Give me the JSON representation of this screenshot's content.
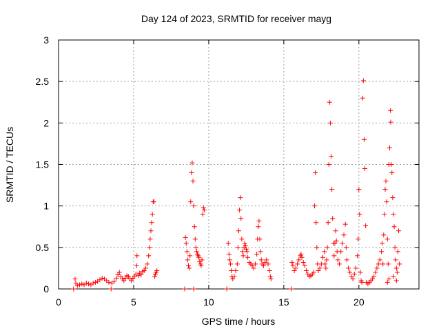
{
  "chart_data": {
    "type": "scatter",
    "title": "Day 124 of 2023, SRMTID for receiver mayg",
    "xlabel": "GPS time / hours",
    "ylabel": "SRMTID / TECUs",
    "xlim": [
      0,
      24
    ],
    "ylim": [
      0,
      3
    ],
    "xticks": [
      0,
      5,
      10,
      15,
      20
    ],
    "xtick_labels": [
      "0",
      "5",
      "10",
      "15",
      "20"
    ],
    "yticks": [
      0,
      0.5,
      1,
      1.5,
      2,
      2.5,
      3
    ],
    "ytick_labels": [
      "0",
      "0.5",
      "1",
      "1.5",
      "2",
      "2.5",
      "3"
    ],
    "grid": true,
    "marker": "+",
    "color": "#ff0000",
    "series": [
      {
        "name": "SRMTID",
        "points": [
          [
            1.0,
            0.0
          ],
          [
            1.1,
            0.12
          ],
          [
            1.15,
            0.07
          ],
          [
            1.25,
            0.04
          ],
          [
            1.4,
            0.05
          ],
          [
            1.55,
            0.06
          ],
          [
            1.7,
            0.05
          ],
          [
            1.85,
            0.07
          ],
          [
            2.0,
            0.06
          ],
          [
            2.15,
            0.05
          ],
          [
            2.3,
            0.07
          ],
          [
            2.45,
            0.08
          ],
          [
            2.6,
            0.09
          ],
          [
            2.75,
            0.11
          ],
          [
            2.9,
            0.13
          ],
          [
            3.05,
            0.12
          ],
          [
            3.2,
            0.1
          ],
          [
            3.35,
            0.08
          ],
          [
            3.5,
            0.0
          ],
          [
            3.55,
            0.07
          ],
          [
            3.7,
            0.09
          ],
          [
            3.85,
            0.13
          ],
          [
            3.95,
            0.17
          ],
          [
            4.05,
            0.2
          ],
          [
            4.15,
            0.15
          ],
          [
            4.25,
            0.12
          ],
          [
            4.35,
            0.1
          ],
          [
            4.45,
            0.13
          ],
          [
            4.55,
            0.16
          ],
          [
            4.65,
            0.15
          ],
          [
            4.75,
            0.12
          ],
          [
            4.85,
            0.1
          ],
          [
            4.95,
            0.13
          ],
          [
            5.05,
            0.15
          ],
          [
            5.15,
            0.18
          ],
          [
            5.2,
            0.28
          ],
          [
            5.22,
            0.4
          ],
          [
            5.3,
            0.16
          ],
          [
            5.4,
            0.19
          ],
          [
            5.5,
            0.17
          ],
          [
            5.6,
            0.21
          ],
          [
            5.7,
            0.22
          ],
          [
            5.8,
            0.25
          ],
          [
            5.9,
            0.3
          ],
          [
            6.0,
            0.4
          ],
          [
            6.05,
            0.5
          ],
          [
            6.1,
            0.6
          ],
          [
            6.15,
            0.7
          ],
          [
            6.2,
            0.8
          ],
          [
            6.25,
            0.9
          ],
          [
            6.3,
            1.05
          ],
          [
            6.35,
            1.05
          ],
          [
            6.4,
            0.15
          ],
          [
            6.45,
            0.18
          ],
          [
            6.5,
            0.2
          ],
          [
            6.55,
            0.22
          ],
          [
            8.4,
            0.0
          ],
          [
            8.45,
            0.62
          ],
          [
            8.5,
            0.55
          ],
          [
            8.55,
            0.45
          ],
          [
            8.6,
            0.35
          ],
          [
            8.65,
            0.28
          ],
          [
            8.7,
            0.25
          ],
          [
            8.75,
            0.4
          ],
          [
            8.8,
            1.05
          ],
          [
            8.85,
            1.4
          ],
          [
            8.9,
            1.52
          ],
          [
            8.95,
            1.3
          ],
          [
            9.0,
            1.0
          ],
          [
            9.05,
            0.75
          ],
          [
            9.1,
            0.6
          ],
          [
            9.15,
            0.5
          ],
          [
            9.2,
            0.45
          ],
          [
            9.25,
            0.42
          ],
          [
            9.3,
            0.4
          ],
          [
            9.35,
            0.38
          ],
          [
            9.4,
            0.33
          ],
          [
            9.45,
            0.3
          ],
          [
            9.5,
            0.28
          ],
          [
            9.55,
            0.35
          ],
          [
            9.6,
            0.9
          ],
          [
            9.65,
            0.98
          ],
          [
            9.7,
            0.95
          ],
          [
            9.0,
            0.0
          ],
          [
            11.2,
            0.0
          ],
          [
            11.3,
            0.55
          ],
          [
            11.35,
            0.42
          ],
          [
            11.4,
            0.35
          ],
          [
            11.45,
            0.3
          ],
          [
            11.5,
            0.22
          ],
          [
            11.55,
            0.15
          ],
          [
            11.6,
            0.12
          ],
          [
            11.7,
            0.15
          ],
          [
            11.8,
            0.22
          ],
          [
            11.9,
            0.3
          ],
          [
            11.95,
            0.5
          ],
          [
            12.0,
            0.7
          ],
          [
            12.05,
            0.95
          ],
          [
            12.1,
            1.1
          ],
          [
            12.15,
            0.85
          ],
          [
            12.2,
            0.6
          ],
          [
            12.25,
            0.45
          ],
          [
            12.3,
            0.4
          ],
          [
            12.35,
            0.5
          ],
          [
            12.4,
            0.55
          ],
          [
            12.45,
            0.52
          ],
          [
            12.5,
            0.48
          ],
          [
            12.55,
            0.45
          ],
          [
            12.6,
            0.38
          ],
          [
            12.7,
            0.32
          ],
          [
            12.8,
            0.3
          ],
          [
            12.9,
            0.28
          ],
          [
            13.0,
            0.25
          ],
          [
            13.1,
            0.3
          ],
          [
            13.2,
            0.42
          ],
          [
            13.25,
            0.6
          ],
          [
            13.3,
            0.75
          ],
          [
            13.35,
            0.82
          ],
          [
            13.4,
            0.6
          ],
          [
            13.45,
            0.45
          ],
          [
            13.5,
            0.35
          ],
          [
            13.55,
            0.3
          ],
          [
            13.65,
            0.28
          ],
          [
            13.75,
            0.32
          ],
          [
            13.85,
            0.35
          ],
          [
            13.95,
            0.3
          ],
          [
            14.05,
            0.22
          ],
          [
            14.1,
            0.15
          ],
          [
            14.15,
            0.12
          ],
          [
            15.5,
            0.0
          ],
          [
            15.55,
            0.32
          ],
          [
            15.6,
            0.28
          ],
          [
            15.7,
            0.22
          ],
          [
            15.8,
            0.25
          ],
          [
            15.9,
            0.3
          ],
          [
            16.0,
            0.35
          ],
          [
            16.1,
            0.4
          ],
          [
            16.15,
            0.42
          ],
          [
            16.2,
            0.38
          ],
          [
            16.3,
            0.32
          ],
          [
            16.4,
            0.28
          ],
          [
            16.5,
            0.22
          ],
          [
            16.6,
            0.18
          ],
          [
            16.7,
            0.15
          ],
          [
            16.8,
            0.16
          ],
          [
            16.9,
            0.18
          ],
          [
            17.0,
            0.2
          ],
          [
            17.05,
            1.0
          ],
          [
            17.1,
            1.4
          ],
          [
            17.15,
            0.8
          ],
          [
            17.2,
            0.5
          ],
          [
            17.25,
            0.3
          ],
          [
            17.3,
            0.22
          ],
          [
            17.4,
            0.25
          ],
          [
            17.5,
            0.3
          ],
          [
            17.6,
            0.38
          ],
          [
            17.7,
            0.45
          ],
          [
            17.75,
            0.3
          ],
          [
            17.8,
            0.25
          ],
          [
            17.85,
            0.35
          ],
          [
            17.9,
            0.5
          ],
          [
            17.95,
            0.8
          ],
          [
            18.0,
            1.5
          ],
          [
            18.05,
            2.25
          ],
          [
            18.1,
            2.0
          ],
          [
            18.15,
            1.6
          ],
          [
            18.2,
            1.2
          ],
          [
            18.25,
            0.85
          ],
          [
            18.3,
            0.55
          ],
          [
            18.35,
            0.4
          ],
          [
            18.4,
            0.55
          ],
          [
            18.45,
            0.7
          ],
          [
            18.5,
            0.58
          ],
          [
            18.55,
            0.45
          ],
          [
            18.6,
            0.35
          ],
          [
            18.7,
            0.3
          ],
          [
            18.8,
            0.45
          ],
          [
            18.9,
            0.55
          ],
          [
            19.0,
            0.65
          ],
          [
            19.1,
            0.78
          ],
          [
            19.15,
            0.5
          ],
          [
            19.2,
            0.35
          ],
          [
            19.3,
            0.25
          ],
          [
            19.4,
            0.2
          ],
          [
            19.5,
            0.15
          ],
          [
            19.6,
            0.12
          ],
          [
            19.7,
            0.18
          ],
          [
            19.8,
            0.25
          ],
          [
            19.9,
            0.4
          ],
          [
            19.95,
            0.6
          ],
          [
            20.0,
            1.2
          ],
          [
            20.05,
            0.9
          ],
          [
            20.1,
            0.2
          ],
          [
            20.15,
            0.1
          ],
          [
            20.2,
            0.08
          ],
          [
            20.25,
            2.3
          ],
          [
            20.3,
            2.51
          ],
          [
            20.35,
            1.8
          ],
          [
            20.4,
            1.45
          ],
          [
            20.45,
            0.76
          ],
          [
            20.5,
            0.08
          ],
          [
            20.6,
            0.06
          ],
          [
            20.7,
            0.08
          ],
          [
            20.8,
            0.1
          ],
          [
            20.9,
            0.12
          ],
          [
            21.0,
            0.15
          ],
          [
            21.1,
            0.2
          ],
          [
            21.2,
            0.25
          ],
          [
            21.3,
            0.3
          ],
          [
            21.4,
            0.35
          ],
          [
            21.5,
            0.45
          ],
          [
            21.55,
            0.55
          ],
          [
            21.6,
            0.3
          ],
          [
            21.65,
            0.65
          ],
          [
            21.7,
            0.9
          ],
          [
            21.75,
            1.2
          ],
          [
            21.8,
            1.3
          ],
          [
            21.85,
            1.05
          ],
          [
            21.9,
            0.6
          ],
          [
            21.95,
            0.3
          ],
          [
            22.0,
            1.5
          ],
          [
            22.05,
            1.7
          ],
          [
            22.1,
            2.15
          ],
          [
            22.12,
            2.01
          ],
          [
            22.15,
            1.5
          ],
          [
            22.2,
            1.4
          ],
          [
            22.25,
            1.1
          ],
          [
            22.3,
            0.9
          ],
          [
            22.35,
            0.75
          ],
          [
            22.4,
            0.5
          ],
          [
            22.45,
            0.35
          ],
          [
            22.5,
            0.25
          ],
          [
            22.55,
            0.2
          ],
          [
            22.6,
            0.45
          ],
          [
            22.65,
            0.7
          ],
          [
            22.7,
            0.3
          ],
          [
            21.9,
            0.08
          ],
          [
            22.0,
            0.12
          ],
          [
            22.3,
            0.15
          ],
          [
            22.5,
            0.1
          ]
        ]
      }
    ]
  }
}
